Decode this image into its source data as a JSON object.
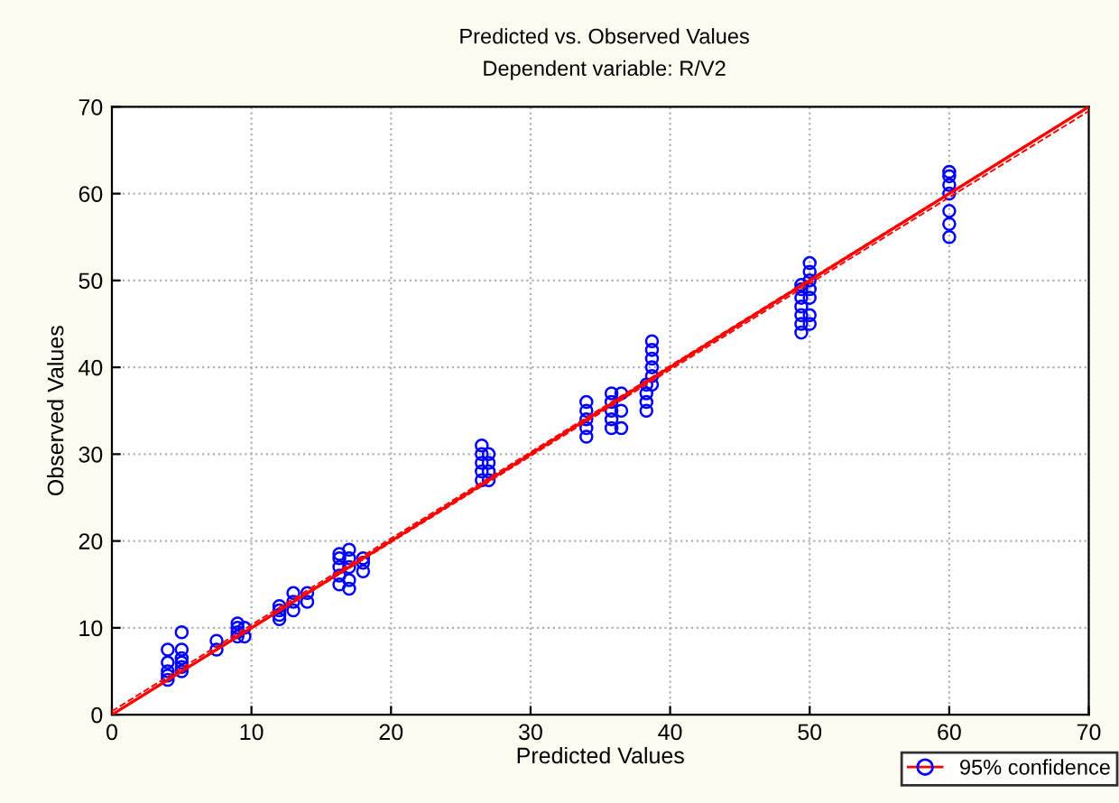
{
  "chart_data": {
    "type": "scatter",
    "title": "Predicted vs. Observed Values",
    "subtitle": "Dependent variable: R/V2",
    "xlabel": "Predicted Values",
    "ylabel": "Observed Values",
    "xlim": [
      0,
      70
    ],
    "ylim": [
      0,
      70
    ],
    "xticks": [
      0,
      10,
      20,
      30,
      40,
      50,
      60,
      70
    ],
    "yticks": [
      0,
      10,
      20,
      30,
      40,
      50,
      60,
      70
    ],
    "grid": true,
    "legend": "bottom right",
    "series": [
      {
        "marker": "circle",
        "color": "#0000ff",
        "x": [
          4,
          4,
          4,
          4,
          4,
          5,
          5,
          5,
          5,
          5,
          5,
          7.5,
          7.5,
          9,
          9,
          9,
          9,
          9.5,
          9.5,
          12,
          12,
          12,
          12,
          13,
          13,
          13,
          14,
          14,
          16.3,
          16.3,
          16.3,
          16.3,
          16.3,
          17,
          17,
          17,
          17,
          17,
          18,
          18,
          18,
          26.5,
          26.5,
          26.5,
          26.5,
          26.5,
          27,
          27,
          27,
          27,
          34,
          34,
          34,
          34,
          34,
          35.8,
          35.8,
          35.8,
          35.8,
          35.8,
          36.5,
          36.5,
          36.5,
          38.3,
          38.3,
          38.3,
          38.3,
          38.7,
          38.7,
          38.7,
          38.7,
          38.7,
          38.7,
          49.4,
          49.4,
          49.4,
          49.4,
          49.4,
          49.4,
          49.4,
          50,
          50,
          50,
          50,
          50,
          50,
          50,
          60,
          60,
          60,
          60,
          60,
          60,
          60
        ],
        "values": [
          4,
          4.5,
          5,
          6,
          7.5,
          5,
          5.5,
          6,
          6.5,
          7.5,
          9.5,
          7.5,
          8.5,
          9,
          9.5,
          10,
          10.5,
          9,
          10,
          11,
          11.5,
          12,
          12.5,
          12,
          13,
          14,
          13,
          14,
          15,
          16,
          17,
          18,
          18.5,
          14.5,
          15.5,
          17,
          18,
          19,
          16.5,
          17.5,
          18,
          27,
          28,
          29,
          30,
          31,
          27,
          28,
          29,
          30,
          32,
          33,
          34,
          35,
          36,
          33,
          34,
          35,
          36,
          37,
          33,
          35,
          37,
          35,
          36,
          37,
          38,
          38,
          39,
          40,
          41,
          42,
          43,
          44,
          45,
          46,
          47,
          48,
          49,
          49.5,
          45,
          46,
          48,
          49,
          50,
          51,
          52,
          55,
          56.5,
          58,
          60,
          61,
          62,
          62.5
        ]
      },
      {
        "type": "line",
        "name": "95% confidence",
        "color": "#ff0000",
        "x": [
          0,
          70
        ],
        "values": [
          0,
          70
        ],
        "line_style": "solid",
        "marker": "none"
      },
      {
        "type": "line",
        "color": "#ff0000",
        "x": [
          0,
          70
        ],
        "values": [
          0,
          69.5
        ],
        "line_style": "dashed",
        "marker": "none"
      },
      {
        "type": "line",
        "color": "#ff0000",
        "x": [
          0,
          70
        ],
        "values": [
          0.4,
          70
        ],
        "line_style": "dashed",
        "marker": "none"
      }
    ]
  }
}
